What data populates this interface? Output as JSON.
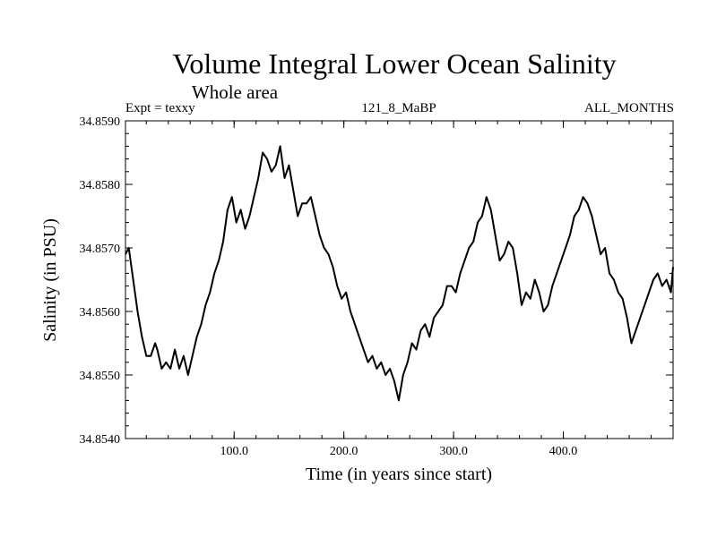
{
  "chart_data": {
    "type": "line",
    "title": "Volume Integral Lower Ocean Salinity",
    "subtitle": "Whole area",
    "annotations": {
      "left": "Expt = texxy",
      "center": "121_8_MaBP",
      "right": "ALL_MONTHS"
    },
    "xlabel": "Time (in years since start)",
    "ylabel": "Salinity (in PSU)",
    "xlim": [
      1,
      500
    ],
    "ylim": [
      34.854,
      34.859
    ],
    "xticks": [
      100,
      200,
      300,
      400
    ],
    "xtick_labels": [
      "100.0",
      "200.0",
      "300.0",
      "400.0"
    ],
    "yticks": [
      34.854,
      34.855,
      34.856,
      34.857,
      34.858,
      34.859
    ],
    "ytick_labels": [
      "34.8540",
      "34.8550",
      "34.8560",
      "34.8570",
      "34.8580",
      "34.8590"
    ],
    "grid": false,
    "line_color": "#000000",
    "series": [
      {
        "name": "Salinity",
        "x": [
          1,
          4,
          8,
          12,
          16,
          20,
          24,
          28,
          30,
          34,
          38,
          42,
          46,
          50,
          54,
          58,
          62,
          66,
          70,
          74,
          78,
          82,
          86,
          90,
          94,
          98,
          102,
          106,
          110,
          114,
          118,
          122,
          126,
          130,
          134,
          138,
          142,
          146,
          150,
          154,
          158,
          162,
          166,
          170,
          174,
          178,
          182,
          186,
          190,
          194,
          198,
          202,
          206,
          210,
          214,
          218,
          222,
          226,
          230,
          234,
          238,
          242,
          246,
          250,
          254,
          258,
          262,
          266,
          270,
          274,
          278,
          282,
          286,
          290,
          294,
          298,
          302,
          306,
          310,
          314,
          318,
          322,
          326,
          330,
          334,
          338,
          342,
          346,
          350,
          354,
          358,
          362,
          366,
          370,
          374,
          378,
          382,
          386,
          390,
          394,
          398,
          402,
          406,
          410,
          414,
          418,
          422,
          426,
          430,
          434,
          438,
          442,
          446,
          450,
          454,
          458,
          462,
          466,
          470,
          474,
          478,
          482,
          486,
          490,
          494,
          498,
          500
        ],
        "values": [
          34.8569,
          34.857,
          34.8565,
          34.856,
          34.8556,
          34.8553,
          34.8553,
          34.8555,
          34.8554,
          34.8551,
          34.8552,
          34.8551,
          34.8554,
          34.8551,
          34.8553,
          34.855,
          34.8553,
          34.8556,
          34.8558,
          34.8561,
          34.8563,
          34.8566,
          34.8568,
          34.8571,
          34.8576,
          34.8578,
          34.8574,
          34.8576,
          34.8573,
          34.8575,
          34.8578,
          34.8581,
          34.8585,
          34.8584,
          34.8582,
          34.8583,
          34.8586,
          34.8581,
          34.8583,
          34.8579,
          34.8575,
          34.8577,
          34.8577,
          34.8578,
          34.8575,
          34.8572,
          34.857,
          34.8569,
          34.8567,
          34.8564,
          34.8562,
          34.8563,
          34.856,
          34.8558,
          34.8556,
          34.8554,
          34.8552,
          34.8553,
          34.8551,
          34.8552,
          34.855,
          34.8551,
          34.8549,
          34.8546,
          34.855,
          34.8552,
          34.8555,
          34.8554,
          34.8557,
          34.8558,
          34.8556,
          34.8559,
          34.856,
          34.8561,
          34.8564,
          34.8564,
          34.8563,
          34.8566,
          34.8568,
          34.857,
          34.8571,
          34.8574,
          34.8575,
          34.8578,
          34.8576,
          34.8572,
          34.8568,
          34.8569,
          34.8571,
          34.857,
          34.8566,
          34.8561,
          34.8563,
          34.8562,
          34.8565,
          34.8563,
          34.856,
          34.8561,
          34.8564,
          34.8566,
          34.8568,
          34.857,
          34.8572,
          34.8575,
          34.8576,
          34.8578,
          34.8577,
          34.8575,
          34.8572,
          34.8569,
          34.857,
          34.8566,
          34.8565,
          34.8563,
          34.8562,
          34.8559,
          34.8555,
          34.8557,
          34.8559,
          34.8561,
          34.8563,
          34.8565,
          34.8566,
          34.8564,
          34.8565,
          34.8563,
          34.8567
        ]
      }
    ]
  }
}
